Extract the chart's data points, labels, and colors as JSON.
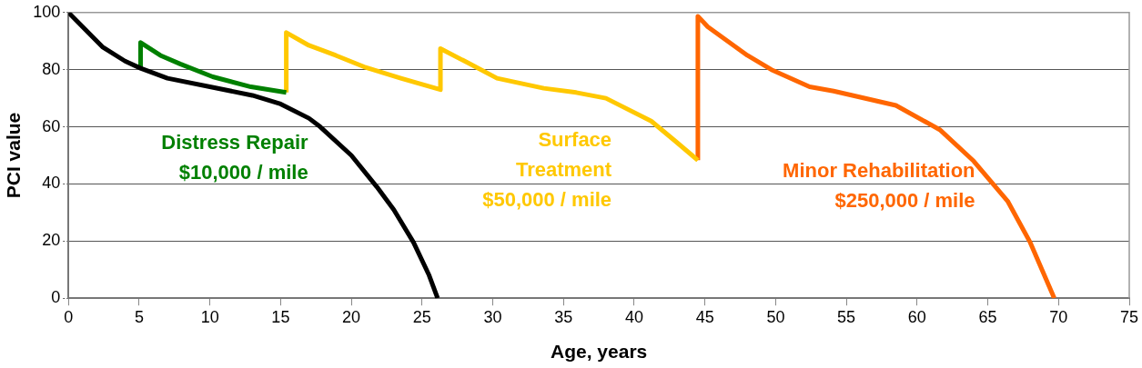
{
  "chart_data": {
    "type": "line",
    "xlabel": "Age, years",
    "ylabel": "PCI value",
    "xlim": [
      0,
      75
    ],
    "xticks": [
      0,
      5,
      10,
      15,
      20,
      25,
      30,
      35,
      40,
      45,
      50,
      55,
      60,
      65,
      70,
      75
    ],
    "ylim": [
      0,
      100
    ],
    "yticks": [
      0,
      20,
      40,
      60,
      80,
      100
    ],
    "grid": "y",
    "legend": false,
    "marker": "none",
    "line_style": "solid",
    "series": [
      {
        "color": "#000000",
        "x": [
          0,
          1,
          2.4,
          4,
          5.1,
          7,
          10,
          13,
          15,
          17,
          17.8,
          20,
          21.8,
          23,
          24.4,
          25.5,
          26.1
        ],
        "values": [
          100,
          95,
          88,
          83,
          80.5,
          77,
          74,
          71,
          68,
          63,
          60,
          50,
          39,
          31,
          19.5,
          8,
          0
        ]
      },
      {
        "name": "Distress Repair\n$10,000 / mile",
        "color": "#008000",
        "x": [
          5.1,
          5.1,
          6.5,
          7.9,
          10.2,
          12.9,
          15.4
        ],
        "values": [
          80.5,
          89.5,
          85,
          82,
          77.5,
          74,
          72
        ]
      },
      {
        "name": "Surface\nTreatment\n$50,000 / mile",
        "color": "#ffc800",
        "x": [
          15.4,
          15.4,
          17,
          18.9,
          20.9,
          23.5,
          26.3,
          26.3,
          28.2,
          30.3,
          33.6,
          35.9,
          38,
          41.2,
          42.9,
          44.5
        ],
        "values": [
          72,
          93,
          88.5,
          85,
          81,
          77,
          73,
          87.4,
          82.5,
          77,
          73.5,
          72,
          70,
          62,
          55,
          48.3
        ]
      },
      {
        "name": "Minor Rehabilitation\n$250,000 / mile",
        "color": "#ff6600",
        "x": [
          44.5,
          44.5,
          45.2,
          48,
          49.7,
          52.4,
          54.1,
          58.5,
          61.6,
          64,
          66.4,
          68,
          69.7
        ],
        "values": [
          48.3,
          98.7,
          95,
          85,
          80,
          74,
          72.5,
          67.5,
          59,
          48,
          34,
          19.5,
          0
        ]
      }
    ]
  }
}
